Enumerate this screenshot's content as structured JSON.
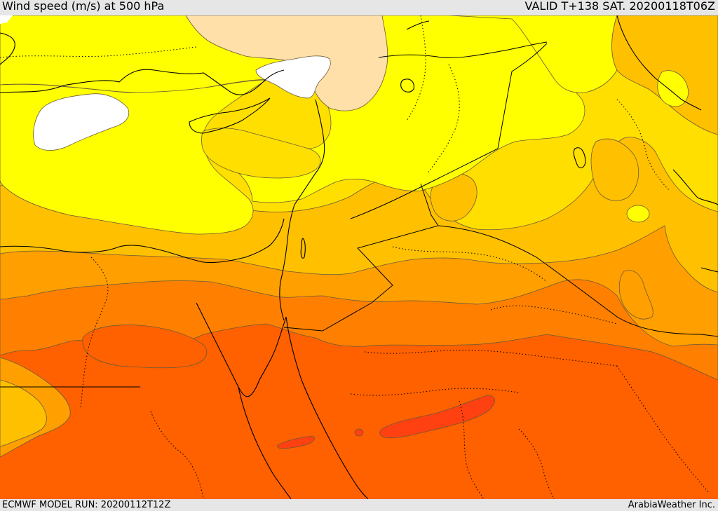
{
  "header": {
    "title": "Wind speed (m/s) at 500 hPa",
    "valid": "VALID T+138 SAT. 20200118T06Z"
  },
  "footer": {
    "model_run": "ECMWF MODEL RUN: 20200112T12Z",
    "credit": "ArabiaWeather Inc."
  },
  "map": {
    "colors": {
      "none": "#ffffff",
      "very_light": "#ffe0a8",
      "yellow": "#ffff00",
      "gold": "#ffdf00",
      "amber": "#ffc000",
      "orange": "#ff9f00",
      "dark_orange": "#ff8000",
      "red_orange": "#ff6000",
      "red": "#ff4010",
      "coast": "#000000",
      "contour": "#6a5a3a"
    }
  }
}
